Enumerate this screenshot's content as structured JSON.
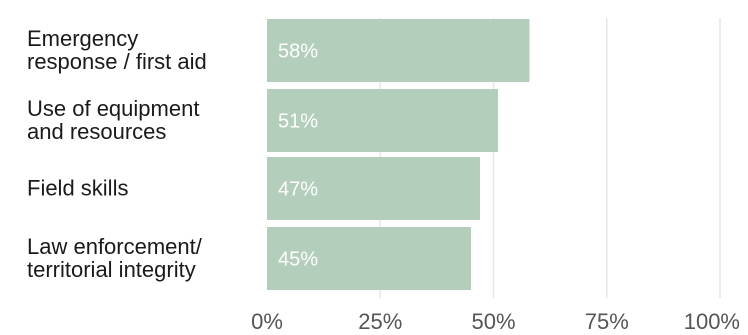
{
  "chart_data": {
    "type": "bar",
    "orientation": "horizontal",
    "categories": [
      [
        "Emergency",
        "response / first aid"
      ],
      [
        "Use of equipment",
        "and resources"
      ],
      [
        "Field skills"
      ],
      [
        "Law enforcement/",
        "territorial integrity"
      ]
    ],
    "values": [
      58,
      51,
      47,
      45
    ],
    "value_labels": [
      "58%",
      "51%",
      "47%",
      "45%"
    ],
    "xlim": [
      0,
      100
    ],
    "x_ticks": [
      0,
      25,
      50,
      75,
      100
    ],
    "x_tick_labels": [
      "0%",
      "25%",
      "50%",
      "75%",
      "100%"
    ],
    "grid": true,
    "bar_color": "#b3cfbc",
    "grid_color": "#e6e6e6",
    "label_color": "#1a1a1a",
    "tick_color": "#555555"
  }
}
